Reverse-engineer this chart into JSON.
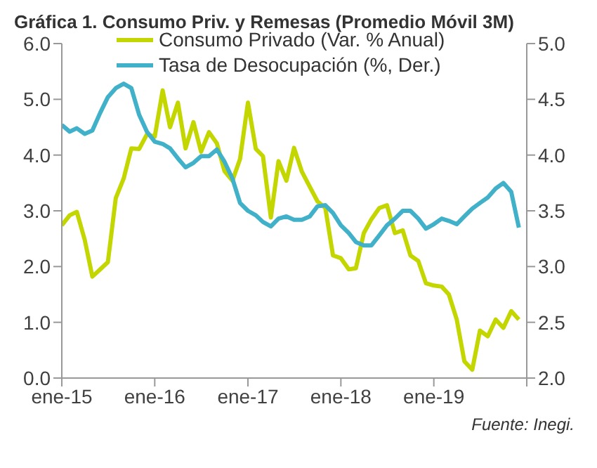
{
  "chart_data": {
    "type": "line",
    "title": "Gráfica 1. Consumo Priv. y Remesas (Promedio Móvil 3M)",
    "x": [
      "2015-01",
      "2015-02",
      "2015-03",
      "2015-04",
      "2015-05",
      "2015-06",
      "2015-07",
      "2015-08",
      "2015-09",
      "2015-10",
      "2015-11",
      "2015-12",
      "2016-01",
      "2016-02",
      "2016-03",
      "2016-04",
      "2016-05",
      "2016-06",
      "2016-07",
      "2016-08",
      "2016-09",
      "2016-10",
      "2016-11",
      "2016-12",
      "2017-01",
      "2017-02",
      "2017-03",
      "2017-04",
      "2017-05",
      "2017-06",
      "2017-07",
      "2017-08",
      "2017-09",
      "2017-10",
      "2017-11",
      "2017-12",
      "2018-01",
      "2018-02",
      "2018-03",
      "2018-04",
      "2018-05",
      "2018-06",
      "2018-07",
      "2018-08",
      "2018-09",
      "2018-10",
      "2018-11",
      "2018-12",
      "2019-01",
      "2019-02",
      "2019-03",
      "2019-04",
      "2019-05",
      "2019-06",
      "2019-07",
      "2019-08",
      "2019-09",
      "2019-10",
      "2019-11",
      "2019-12"
    ],
    "series": [
      {
        "name": "Consumo Privado (Var. % Anual)",
        "color": "#c4d600",
        "values": [
          2.74,
          2.92,
          2.98,
          2.48,
          1.82,
          1.95,
          2.08,
          3.23,
          3.58,
          4.12,
          4.11,
          4.37,
          4.33,
          5.16,
          4.5,
          4.94,
          4.12,
          4.59,
          4.06,
          4.41,
          4.21,
          3.71,
          3.54,
          3.93,
          4.94,
          4.11,
          3.98,
          2.88,
          3.89,
          3.54,
          4.13,
          3.7,
          3.43,
          3.17,
          3.05,
          2.2,
          2.15,
          1.95,
          1.97,
          2.6,
          2.85,
          3.05,
          3.1,
          2.6,
          2.65,
          2.2,
          2.1,
          1.7,
          1.66,
          1.64,
          1.5,
          1.05,
          0.3,
          0.15,
          0.85,
          0.75,
          1.05,
          0.9,
          1.2,
          1.05
        ]
      },
      {
        "name": "Tasa de Desocupación (%, Der.)",
        "color": "#41b1c9",
        "axis": "y2",
        "values": [
          4.27,
          4.21,
          4.24,
          4.19,
          4.22,
          4.38,
          4.52,
          4.6,
          4.64,
          4.6,
          4.36,
          4.21,
          4.12,
          4.1,
          4.06,
          3.97,
          3.89,
          3.93,
          3.99,
          3.99,
          4.05,
          3.94,
          3.79,
          3.57,
          3.5,
          3.46,
          3.4,
          3.36,
          3.43,
          3.45,
          3.42,
          3.42,
          3.45,
          3.54,
          3.55,
          3.48,
          3.37,
          3.3,
          3.22,
          3.19,
          3.19,
          3.28,
          3.37,
          3.43,
          3.5,
          3.5,
          3.43,
          3.34,
          3.38,
          3.43,
          3.41,
          3.38,
          3.45,
          3.52,
          3.57,
          3.62,
          3.7,
          3.75,
          3.67,
          3.35
        ]
      }
    ],
    "xlim": [
      "2015-01",
      "2020-01"
    ],
    "xticks": [
      {
        "value": "2015-01",
        "label": "ene-15"
      },
      {
        "value": "2016-01",
        "label": "ene-16"
      },
      {
        "value": "2017-01",
        "label": "ene-17"
      },
      {
        "value": "2018-01",
        "label": "ene-18"
      },
      {
        "value": "2019-01",
        "label": "ene-19"
      },
      {
        "value": "2020-01",
        "label": null
      }
    ],
    "ylim": [
      0,
      6
    ],
    "yticks": [
      {
        "value": 0,
        "label": "0.0"
      },
      {
        "value": 1,
        "label": "1.0"
      },
      {
        "value": 2,
        "label": "2.0"
      },
      {
        "value": 3,
        "label": "3.0"
      },
      {
        "value": 4,
        "label": "4.0"
      },
      {
        "value": 5,
        "label": "5.0"
      },
      {
        "value": 6,
        "label": "6.0"
      }
    ],
    "y2lim": [
      2,
      5
    ],
    "y2ticks": [
      {
        "value": 2,
        "label": "2.0"
      },
      {
        "value": 2.5,
        "label": "2.5"
      },
      {
        "value": 3,
        "label": "3.0"
      },
      {
        "value": 3.5,
        "label": "3.5"
      },
      {
        "value": 4,
        "label": "4.0"
      },
      {
        "value": 4.5,
        "label": "4.5"
      },
      {
        "value": 5,
        "label": "5.0"
      }
    ],
    "legend": "top",
    "annotations": [
      "Fuente: Inegi."
    ]
  }
}
